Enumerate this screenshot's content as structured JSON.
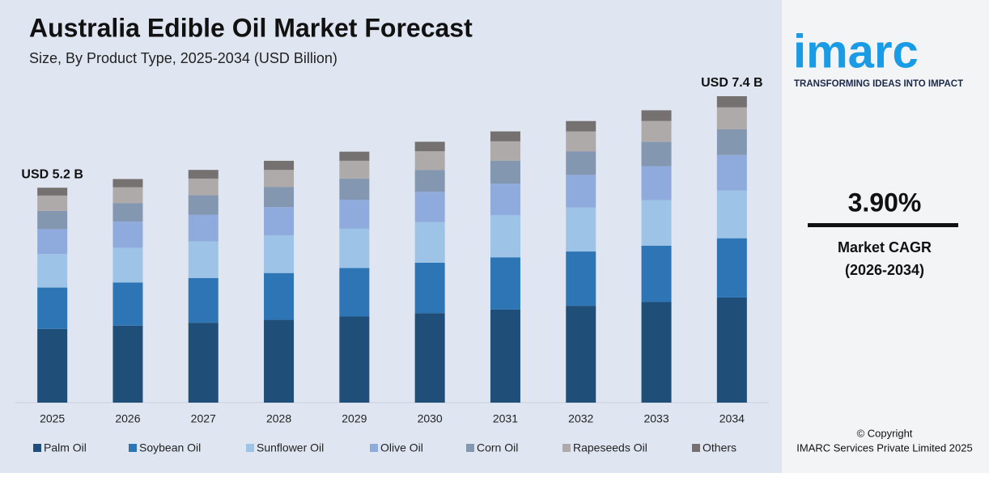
{
  "chart_data": {
    "type": "stacked_bar",
    "title": "Australia Edible Oil Market Forecast",
    "subtitle": "Size, By Product Type, 2025-2034 (USD Billion)",
    "annotations": [
      "USD 5.2 B",
      "USD 7.4 B"
    ],
    "categories": [
      "2025",
      "2026",
      "2027",
      "2028",
      "2029",
      "2030",
      "2031",
      "2032",
      "2033",
      "2034"
    ],
    "series": [
      {
        "name": "Palm Oil",
        "color": "#1f4e79",
        "values": [
          1.78,
          1.86,
          1.93,
          2.0,
          2.08,
          2.16,
          2.25,
          2.34,
          2.43,
          2.54
        ]
      },
      {
        "name": "Soybean Oil",
        "color": "#2e75b6",
        "values": [
          1.0,
          1.04,
          1.08,
          1.13,
          1.17,
          1.22,
          1.26,
          1.31,
          1.36,
          1.43
        ]
      },
      {
        "name": "Sunflower Oil",
        "color": "#9dc3e6",
        "values": [
          0.81,
          0.84,
          0.88,
          0.91,
          0.95,
          0.98,
          1.02,
          1.06,
          1.1,
          1.15
        ]
      },
      {
        "name": "Olive Oil",
        "color": "#8faadc",
        "values": [
          0.6,
          0.63,
          0.65,
          0.68,
          0.7,
          0.73,
          0.76,
          0.79,
          0.82,
          0.86
        ]
      },
      {
        "name": "Corn Oil",
        "color": "#8497b0",
        "values": [
          0.44,
          0.45,
          0.47,
          0.49,
          0.51,
          0.53,
          0.55,
          0.57,
          0.59,
          0.62
        ]
      },
      {
        "name": "Rapeseeds Oil",
        "color": "#aeaaaa",
        "values": [
          0.37,
          0.38,
          0.4,
          0.41,
          0.43,
          0.45,
          0.47,
          0.48,
          0.5,
          0.53
        ]
      },
      {
        "name": "Others",
        "color": "#767171",
        "values": [
          0.19,
          0.2,
          0.21,
          0.22,
          0.22,
          0.23,
          0.24,
          0.25,
          0.26,
          0.27
        ]
      }
    ],
    "ylim": [
      0,
      7.4
    ]
  },
  "sidebar": {
    "logo": "imarc",
    "tagline": "TRANSFORMING IDEAS INTO IMPACT",
    "cagr": "3.90%",
    "cagr_label": "Market CAGR",
    "cagr_period": "(2026-2034)",
    "copyright": "© Copyright",
    "company": "IMARC Services Private Limited 2025"
  }
}
